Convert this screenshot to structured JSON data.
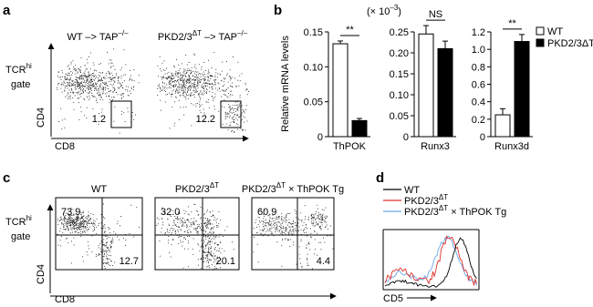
{
  "panel_a": {
    "label": "a",
    "gate": [
      {
        "text": "TCR"
      },
      {
        "text": "hi",
        "sup": true
      }
    ],
    "gate_word": "gate",
    "y_axis": "CD4",
    "x_axis": "CD8",
    "plots": [
      {
        "title": [
          {
            "text": "WT –> TAP"
          },
          {
            "text": "–/–",
            "sup": true
          }
        ],
        "gate_value": "1.2"
      },
      {
        "title": [
          {
            "text": "PKD2/3"
          },
          {
            "text": "ΔT",
            "sup": true
          },
          {
            "text": " –> TAP"
          },
          {
            "text": "–/–",
            "sup": true
          }
        ],
        "gate_value": "12.2"
      }
    ]
  },
  "panel_b": {
    "label": "b",
    "unit_note": [
      {
        "text": "(× 10"
      },
      {
        "text": "–3",
        "sup": true
      },
      {
        "text": ")"
      }
    ]
  },
  "chart_data": [
    {
      "type": "bar",
      "ylabel": "Relative mRNA levels",
      "categories": [
        "ThPOK"
      ],
      "series": [
        {
          "name": "WT",
          "color": "#ffffff",
          "values": [
            0.133
          ],
          "errors": [
            0.004
          ]
        },
        {
          "name": "PKD2/3ΔT",
          "color": "#000000",
          "values": [
            0.023
          ],
          "errors": [
            0.003
          ]
        }
      ],
      "ylim": [
        0,
        0.15
      ],
      "yticks": [
        0,
        0.05,
        {
          "value": 0.1,
          "label": "0.10"
        },
        0.15
      ],
      "annotation": "**"
    },
    {
      "type": "bar",
      "categories": [
        "Runx3"
      ],
      "series": [
        {
          "name": "WT",
          "color": "#ffffff",
          "values": [
            0.245
          ],
          "errors": [
            0.02
          ]
        },
        {
          "name": "PKD2/3ΔT",
          "color": "#000000",
          "values": [
            0.21
          ],
          "errors": [
            0.018
          ]
        }
      ],
      "ylim": [
        0,
        0.25
      ],
      "yticks": [
        0,
        0.05,
        {
          "value": 0.1,
          "label": "0.10"
        },
        0.15,
        {
          "value": 0.2,
          "label": "0.20"
        },
        0.25
      ],
      "annotation": "NS"
    },
    {
      "type": "bar",
      "categories": [
        "Runx3d"
      ],
      "series": [
        {
          "name": "WT",
          "color": "#ffffff",
          "values": [
            0.25
          ],
          "errors": [
            0.07
          ]
        },
        {
          "name": "PKD2/3ΔT",
          "color": "#000000",
          "values": [
            1.09
          ],
          "errors": [
            0.08
          ]
        }
      ],
      "ylim": [
        0,
        1.2
      ],
      "yticks": [
        0,
        0.2,
        0.4,
        0.6,
        0.8,
        {
          "value": 1,
          "label": "1.0"
        },
        1.2
      ],
      "annotation": "**",
      "legend": "right"
    }
  ],
  "panel_c": {
    "label": "c",
    "gate": [
      {
        "text": "TCR"
      },
      {
        "text": "hi",
        "sup": true
      }
    ],
    "gate_word": "gate",
    "y_axis": "CD4",
    "x_axis": "CD8",
    "plots": [
      {
        "title": [
          {
            "text": "WT"
          }
        ],
        "upper_left": "73.9",
        "lower_right": "12.7"
      },
      {
        "title": [
          {
            "text": "PKD2/3"
          },
          {
            "text": "ΔT",
            "sup": true
          }
        ],
        "upper_left": "32.0",
        "lower_right": "20.1"
      },
      {
        "title": [
          {
            "text": "PKD2/3"
          },
          {
            "text": "ΔT",
            "sup": true
          },
          {
            "text": " × ThPOK Tg"
          }
        ],
        "upper_left": "60.9",
        "lower_right": "4.4"
      }
    ]
  },
  "panel_d": {
    "label": "d",
    "x_axis": "CD5",
    "series": [
      {
        "name": [
          {
            "text": "WT"
          }
        ],
        "color": "#000000"
      },
      {
        "name": [
          {
            "text": "PKD2/3"
          },
          {
            "text": "ΔT",
            "sup": true
          }
        ],
        "color": "#e0302a"
      },
      {
        "name": [
          {
            "text": "PKD2/3"
          },
          {
            "text": "ΔT",
            "sup": true
          },
          {
            "text": " × ThPOK Tg"
          }
        ],
        "color": "#6aa8e8"
      }
    ]
  }
}
